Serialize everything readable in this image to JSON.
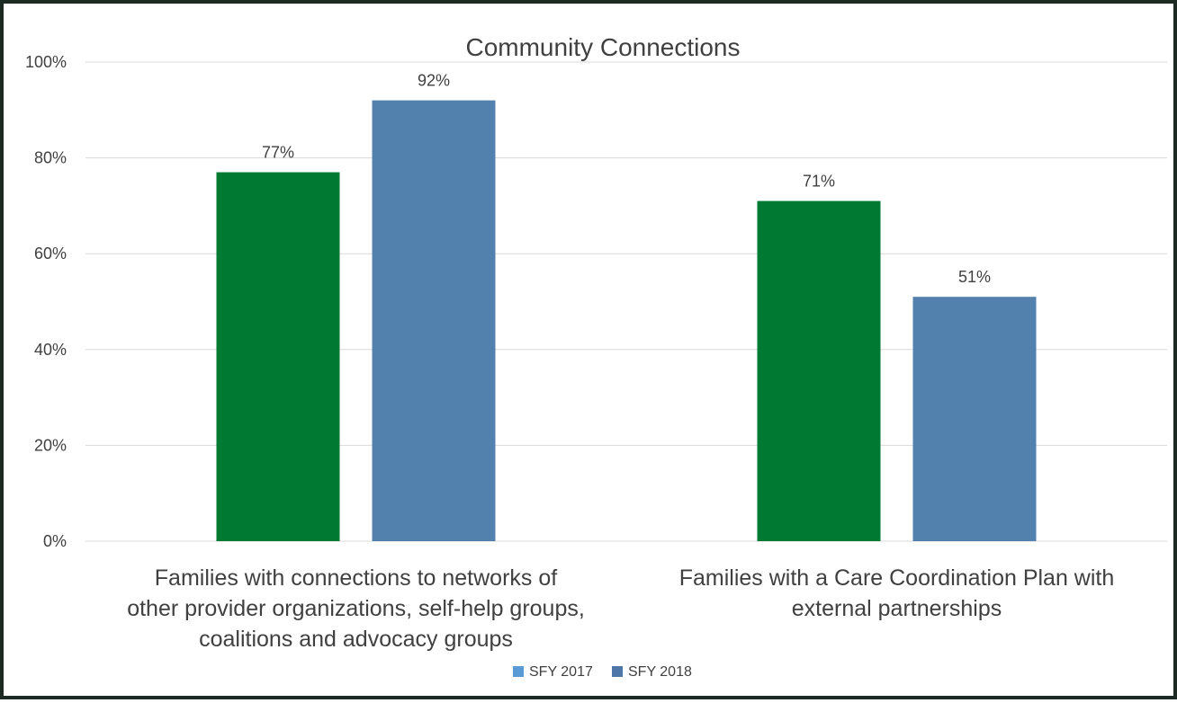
{
  "chart_data": {
    "type": "bar",
    "title": "Community Connections",
    "categories": [
      [
        "Families with connections to networks of",
        "other provider organizations, self-help groups,",
        "coalitions and advocacy groups"
      ],
      [
        "Families with a Care Coordination Plan with",
        "external partnerships"
      ]
    ],
    "series": [
      {
        "name": "SFY 2017",
        "values": [
          0.77,
          0.71
        ],
        "labels": [
          "77%",
          "71%"
        ],
        "bar_color": "#007a33",
        "legend_color": "#5b9bd5"
      },
      {
        "name": "SFY 2018",
        "values": [
          0.92,
          0.51
        ],
        "labels": [
          "92%",
          "51%"
        ],
        "bar_color": "#5381ad",
        "legend_color": "#4f76a8"
      }
    ],
    "ylim": [
      0,
      1
    ],
    "yticks": [
      {
        "value": 0,
        "label": "0%"
      },
      {
        "value": 0.2,
        "label": "20%"
      },
      {
        "value": 0.4,
        "label": "40%"
      },
      {
        "value": 0.6,
        "label": "60%"
      },
      {
        "value": 0.8,
        "label": "80%"
      },
      {
        "value": 1.0,
        "label": "100%"
      }
    ],
    "grid": true,
    "legend_position": "bottom",
    "xlabel": "",
    "ylabel": ""
  }
}
